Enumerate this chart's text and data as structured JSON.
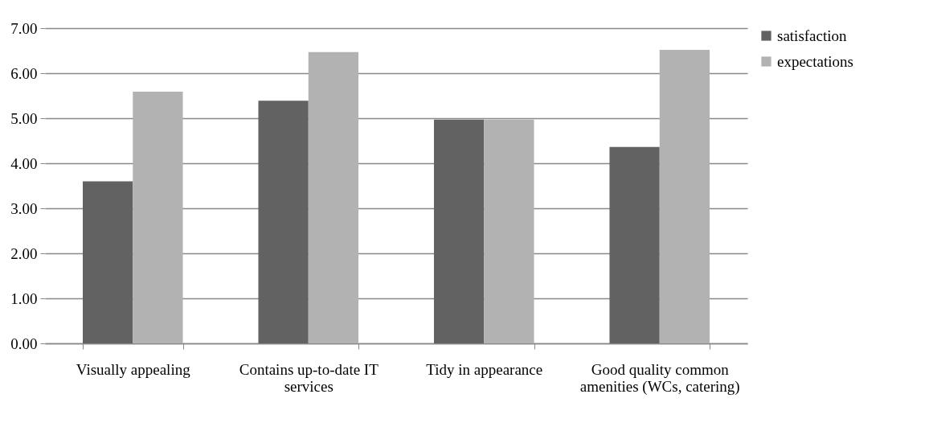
{
  "chart_data": {
    "type": "bar",
    "categories": [
      "Visually appealing",
      "Contains up-to-date IT services",
      "Tidy in appearance",
      "Good quality common amenities (WCs, catering)"
    ],
    "series": [
      {
        "name": "satisfaction",
        "color": "#626262",
        "values": [
          3.6,
          5.39,
          4.97,
          4.36
        ]
      },
      {
        "name": "expectations",
        "color": "#b2b2b2",
        "values": [
          5.59,
          6.47,
          4.97,
          6.52
        ]
      }
    ],
    "ylim": [
      0,
      7
    ],
    "yticks": [
      {
        "value": 0,
        "label": "0.00"
      },
      {
        "value": 1,
        "label": "1.00"
      },
      {
        "value": 2,
        "label": "2.00"
      },
      {
        "value": 3,
        "label": "3.00"
      },
      {
        "value": 4,
        "label": "4.00"
      },
      {
        "value": 5,
        "label": "5.00"
      },
      {
        "value": 6,
        "label": "6.00"
      },
      {
        "value": 7,
        "label": "7.00"
      }
    ],
    "grid": "y",
    "legend": "right"
  }
}
